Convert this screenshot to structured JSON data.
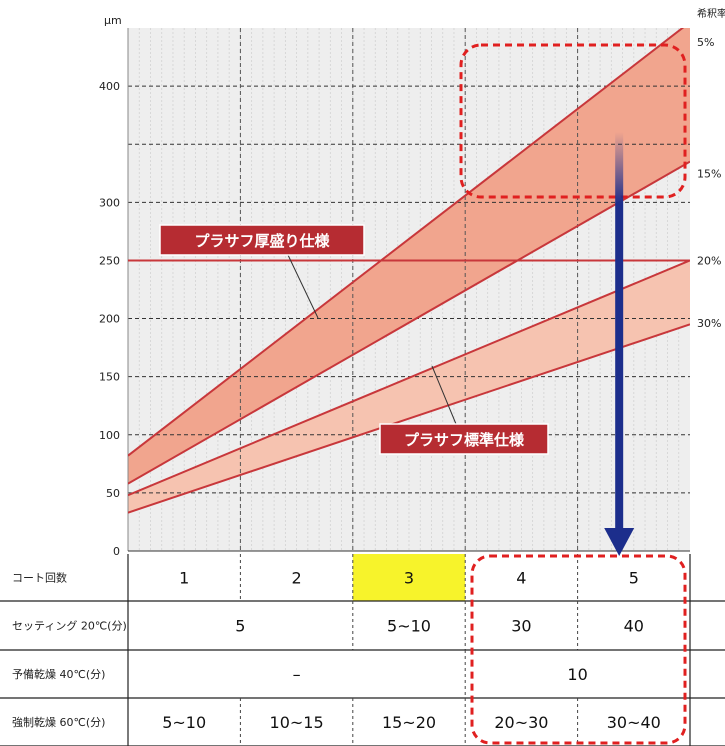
{
  "chart_data": {
    "type": "area",
    "y_unit": "μm",
    "y_ticks": [
      0,
      50,
      100,
      150,
      200,
      250,
      300,
      350,
      400
    ],
    "ylim": [
      0,
      450
    ],
    "xlim": [
      0,
      5
    ],
    "dilution_title": "希釈率",
    "dilution_labels": [
      {
        "label": "5%",
        "y": 438
      },
      {
        "label": "15%",
        "y": 325
      },
      {
        "label": "20%",
        "y": 250
      },
      {
        "label": "30%",
        "y": 196
      }
    ],
    "reference_line": {
      "y": 250
    },
    "lines": [
      {
        "name": "5%",
        "y0": 82,
        "y1": 455
      },
      {
        "name": "15%",
        "y0": 58,
        "y1": 335
      },
      {
        "name": "20%",
        "y0": 48,
        "y1": 250
      },
      {
        "name": "30%",
        "y0": 33,
        "y1": 195
      }
    ],
    "series": [
      {
        "name": "プラサフ厚盛り仕様",
        "upper": "5%",
        "lower": "15%",
        "color": "#f1a58e"
      },
      {
        "name": "プラサフ標準仕様",
        "upper": "20%",
        "lower": "30%",
        "color": "#f6c3b0"
      }
    ],
    "arrow_x": 4.37,
    "table": {
      "rows": [
        {
          "label": "コート回数",
          "cells": [
            {
              "text": "1",
              "from": 0,
              "to": 1
            },
            {
              "text": "2",
              "from": 1,
              "to": 2
            },
            {
              "text": "3",
              "from": 2,
              "to": 3,
              "highlight": true
            },
            {
              "text": "4",
              "from": 3,
              "to": 4
            },
            {
              "text": "5",
              "from": 4,
              "to": 5
            }
          ]
        },
        {
          "label": "セッティング 20℃(分)",
          "cells": [
            {
              "text": "5",
              "from": 0,
              "to": 2
            },
            {
              "text": "5~10",
              "from": 2,
              "to": 3
            },
            {
              "text": "30",
              "from": 3,
              "to": 4
            },
            {
              "text": "40",
              "from": 4,
              "to": 5
            }
          ]
        },
        {
          "label": "予備乾燥 40℃(分)",
          "cells": [
            {
              "text": "–",
              "from": 0,
              "to": 3
            },
            {
              "text": "10",
              "from": 3,
              "to": 5
            }
          ]
        },
        {
          "label": "強制乾燥 60℃(分)",
          "cells": [
            {
              "text": "5~10",
              "from": 0,
              "to": 1
            },
            {
              "text": "10~15",
              "from": 1,
              "to": 2
            },
            {
              "text": "15~20",
              "from": 2,
              "to": 3
            },
            {
              "text": "20~30",
              "from": 3,
              "to": 4
            },
            {
              "text": "30~40",
              "from": 4,
              "to": 5
            }
          ]
        }
      ]
    }
  },
  "colors": {
    "band_thick": "#f1a58e",
    "band_standard": "#f6c3b0",
    "line": "#c8373b",
    "arrow": "#1c2e8c",
    "highlight": "#f7f32b",
    "dashed_box": "#e02020",
    "callout_bg": "#b62c32"
  }
}
